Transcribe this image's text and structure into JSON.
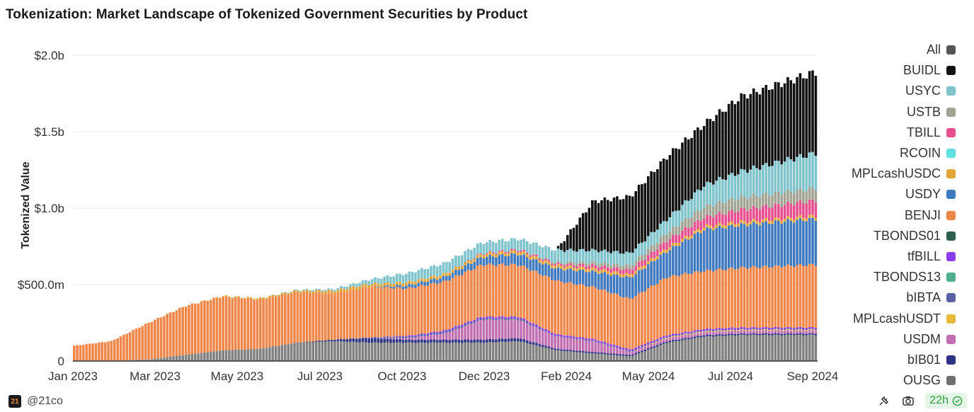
{
  "chart_data": {
    "type": "area",
    "title": "Tokenization: Market Landscape of Tokenized Government Securities by Product",
    "ylabel": "Tokenized Value",
    "xlabel": "",
    "x": [
      "2023-01",
      "2023-02",
      "2023-03",
      "2023-04",
      "2023-05",
      "2023-06",
      "2023-07",
      "2023-08",
      "2023-09",
      "2023-10",
      "2023-11",
      "2023-12",
      "2024-01",
      "2024-02",
      "2024-03",
      "2024-04",
      "2024-05",
      "2024-06",
      "2024-07",
      "2024-08",
      "2024-09"
    ],
    "x_ticks": [
      "Jan 2023",
      "Mar 2023",
      "May 2023",
      "Jul 2023",
      "Oct 2023",
      "Dec 2023",
      "Feb 2024",
      "May 2024",
      "Jul 2024",
      "Sep 2024"
    ],
    "y_ticks": [
      "0",
      "$500.0m",
      "$1.0b",
      "$1.5b",
      "$2.0b"
    ],
    "ylim": [
      0,
      2000000000
    ],
    "grid": true,
    "legend_position": "right",
    "legend": [
      {
        "name": "All",
        "color": "#555555"
      },
      {
        "name": "BUIDL",
        "color": "#111111"
      },
      {
        "name": "USYC",
        "color": "#7fc3cc"
      },
      {
        "name": "USTB",
        "color": "#a3a394"
      },
      {
        "name": "TBILL",
        "color": "#e64f8e"
      },
      {
        "name": "RCOIN",
        "color": "#5fe0de"
      },
      {
        "name": "MPLcashUSDC",
        "color": "#e3a43a"
      },
      {
        "name": "USDY",
        "color": "#3f79bf"
      },
      {
        "name": "BENJI",
        "color": "#f0874a"
      },
      {
        "name": "TBONDS01",
        "color": "#2f5f52"
      },
      {
        "name": "tfBILL",
        "color": "#8a3bea"
      },
      {
        "name": "TBONDS13",
        "color": "#4fae8e"
      },
      {
        "name": "bIBTA",
        "color": "#5a5fa6"
      },
      {
        "name": "MPLcashUSDT",
        "color": "#e6b93a"
      },
      {
        "name": "USDM",
        "color": "#c06fb0"
      },
      {
        "name": "bIB01",
        "color": "#2e3285"
      },
      {
        "name": "OUSG",
        "color": "#707070"
      }
    ],
    "series": [
      {
        "name": "OUSG",
        "color": "#808080",
        "values": [
          0,
          0,
          0.01,
          0.04,
          0.07,
          0.08,
          0.12,
          0.13,
          0.12,
          0.12,
          0.12,
          0.12,
          0.13,
          0.07,
          0.05,
          0.03,
          0.12,
          0.16,
          0.17,
          0.17,
          0.17
        ]
      },
      {
        "name": "bIB01",
        "color": "#2e3285",
        "values": [
          0,
          0,
          0,
          0,
          0,
          0,
          0,
          0.01,
          0.03,
          0.02,
          0.02,
          0.02,
          0.02,
          0.01,
          0.01,
          0.01,
          0.01,
          0.01,
          0.01,
          0.01,
          0.01
        ]
      },
      {
        "name": "USDM",
        "color": "#c06fb0",
        "values": [
          0,
          0,
          0,
          0,
          0,
          0,
          0,
          0,
          0,
          0.01,
          0.04,
          0.13,
          0.12,
          0.08,
          0.07,
          0.02,
          0.02,
          0.02,
          0.02,
          0.02,
          0.02
        ]
      },
      {
        "name": "MPLcashUSDT",
        "color": "#e6b93a",
        "values": [
          0,
          0,
          0,
          0,
          0,
          0,
          0,
          0,
          0,
          0,
          0,
          0,
          0,
          0,
          0,
          0,
          0.005,
          0.005,
          0.005,
          0.005,
          0.005
        ]
      },
      {
        "name": "bIBTA",
        "color": "#5a5fa6",
        "values": [
          0,
          0,
          0,
          0,
          0,
          0,
          0,
          0,
          0.005,
          0.01,
          0.01,
          0.01,
          0.01,
          0.005,
          0.005,
          0.005,
          0.005,
          0.005,
          0.005,
          0.005,
          0.005
        ]
      },
      {
        "name": "TBONDS13",
        "color": "#4fae8e",
        "values": [
          0,
          0,
          0,
          0,
          0,
          0,
          0,
          0,
          0,
          0,
          0,
          0,
          0,
          0,
          0,
          0,
          0,
          0,
          0,
          0,
          0
        ]
      },
      {
        "name": "tfBILL",
        "color": "#8a3bea",
        "values": [
          0,
          0,
          0,
          0,
          0,
          0,
          0,
          0,
          0,
          0.005,
          0.01,
          0.01,
          0.01,
          0.01,
          0.01,
          0.01,
          0.01,
          0.01,
          0.01,
          0.01,
          0.01
        ]
      },
      {
        "name": "TBONDS01",
        "color": "#2f5f52",
        "values": [
          0,
          0,
          0,
          0,
          0,
          0,
          0,
          0,
          0,
          0,
          0,
          0,
          0,
          0,
          0,
          0,
          0,
          0,
          0,
          0,
          0
        ]
      },
      {
        "name": "BENJI",
        "color": "#f0874a",
        "values": [
          0.1,
          0.13,
          0.24,
          0.32,
          0.35,
          0.32,
          0.33,
          0.3,
          0.33,
          0.31,
          0.32,
          0.34,
          0.34,
          0.35,
          0.34,
          0.33,
          0.38,
          0.38,
          0.39,
          0.4,
          0.41
        ]
      },
      {
        "name": "USDY",
        "color": "#3f79bf",
        "values": [
          0,
          0,
          0,
          0,
          0,
          0,
          0,
          0,
          0,
          0.02,
          0.03,
          0.05,
          0.07,
          0.08,
          0.1,
          0.14,
          0.17,
          0.27,
          0.28,
          0.29,
          0.3
        ]
      },
      {
        "name": "MPLcashUSDC",
        "color": "#e3a43a",
        "values": [
          0,
          0,
          0,
          0,
          0.005,
          0.01,
          0.01,
          0.02,
          0.02,
          0.02,
          0.02,
          0.02,
          0.02,
          0.02,
          0.02,
          0.02,
          0.02,
          0.02,
          0.02,
          0.02,
          0.02
        ]
      },
      {
        "name": "RCOIN",
        "color": "#5fe0de",
        "values": [
          0,
          0,
          0,
          0,
          0,
          0,
          0,
          0,
          0,
          0,
          0,
          0,
          0,
          0,
          0,
          0,
          0,
          0,
          0,
          0,
          0
        ]
      },
      {
        "name": "TBILL",
        "color": "#e64f8e",
        "values": [
          0,
          0,
          0,
          0,
          0,
          0,
          0,
          0,
          0,
          0,
          0,
          0.005,
          0.01,
          0.01,
          0.02,
          0.03,
          0.05,
          0.06,
          0.08,
          0.09,
          0.1
        ]
      },
      {
        "name": "USTB",
        "color": "#a3a394",
        "values": [
          0,
          0,
          0,
          0,
          0,
          0,
          0,
          0,
          0,
          0,
          0,
          0,
          0,
          0.01,
          0.02,
          0.03,
          0.05,
          0.07,
          0.08,
          0.08,
          0.08
        ]
      },
      {
        "name": "USYC",
        "color": "#7fc3cc",
        "values": [
          0,
          0,
          0,
          0,
          0,
          0,
          0.005,
          0.01,
          0.03,
          0.06,
          0.07,
          0.07,
          0.07,
          0.08,
          0.08,
          0.08,
          0.09,
          0.14,
          0.17,
          0.2,
          0.23
        ]
      },
      {
        "name": "BUIDL",
        "color": "#111111",
        "values": [
          0,
          0,
          0,
          0,
          0,
          0,
          0,
          0,
          0,
          0,
          0,
          0,
          0,
          0,
          0.32,
          0.37,
          0.41,
          0.4,
          0.49,
          0.51,
          0.53
        ]
      }
    ],
    "units": "billion USD"
  },
  "footer": {
    "brand_logo": "21",
    "brand_label": "@21co",
    "timer_label": "22h"
  }
}
